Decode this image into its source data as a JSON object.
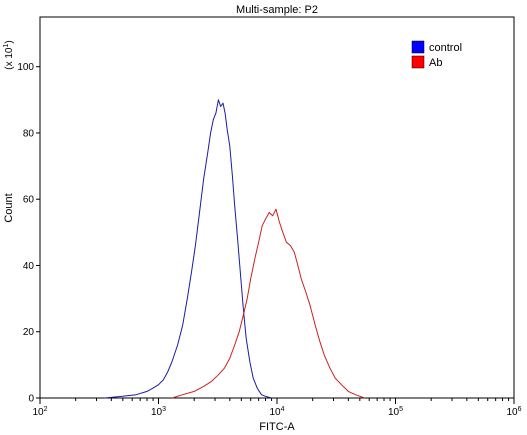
{
  "chart_data": {
    "type": "line",
    "title": "Multi-sample: P2",
    "xlabel": "FITC-A",
    "ylabel": "Count",
    "y_multiplier_label": "(x 10",
    "y_multiplier_exp": "1",
    "x_scale": "log",
    "xlim": [
      100,
      1000000
    ],
    "ylim": [
      0,
      115
    ],
    "x_ticks": [
      {
        "value": 100,
        "base": "10",
        "exp": "2"
      },
      {
        "value": 1000,
        "base": "10",
        "exp": "3"
      },
      {
        "value": 10000,
        "base": "10",
        "exp": "4"
      },
      {
        "value": 100000,
        "base": "10",
        "exp": "5"
      },
      {
        "value": 1000000,
        "base": "10",
        "exp": "6"
      }
    ],
    "y_ticks": [
      0,
      20,
      40,
      60,
      80,
      100
    ],
    "legend_position": "top-right",
    "grid": false,
    "series": [
      {
        "name": "control",
        "color": "#1a1aa6",
        "legend_color": "#0000ff",
        "x": [
          350,
          500,
          650,
          800,
          900,
          1000,
          1100,
          1200,
          1300,
          1450,
          1600,
          1750,
          1900,
          2050,
          2200,
          2400,
          2600,
          2750,
          2900,
          3050,
          3200,
          3350,
          3500,
          3650,
          3800,
          4000,
          4200,
          4400,
          4650,
          4900,
          5200,
          5500,
          5900,
          6300,
          6800,
          7400,
          8000,
          9000
        ],
        "y": [
          0,
          0.5,
          1,
          2,
          3,
          4,
          5.5,
          8,
          11,
          16,
          22,
          30,
          38,
          46,
          55,
          66,
          74,
          80,
          84,
          86,
          90,
          88,
          89,
          86,
          81,
          76,
          67,
          58,
          48,
          38,
          27,
          18,
          11,
          6,
          3,
          1,
          0.5,
          0
        ]
      },
      {
        "name": "Ab",
        "color": "#cc2020",
        "legend_color": "#ff0000",
        "x": [
          1300,
          1600,
          2000,
          2400,
          2800,
          3200,
          3600,
          4000,
          4400,
          4800,
          5200,
          5600,
          6000,
          6500,
          7000,
          7500,
          8000,
          8600,
          9200,
          9800,
          10500,
          11200,
          12000,
          13000,
          14000,
          15000,
          16000,
          17500,
          19000,
          21000,
          23000,
          25000,
          28000,
          31000,
          35000,
          40000,
          46000,
          55000
        ],
        "y": [
          0,
          1,
          2,
          3.5,
          5,
          7,
          9,
          12,
          16,
          20,
          25,
          30,
          36,
          42,
          47,
          52,
          54,
          56,
          55,
          57,
          53,
          50,
          47,
          46,
          44,
          40,
          36,
          32,
          28,
          22,
          17,
          13,
          9,
          6,
          4,
          2,
          1,
          0
        ]
      }
    ]
  }
}
